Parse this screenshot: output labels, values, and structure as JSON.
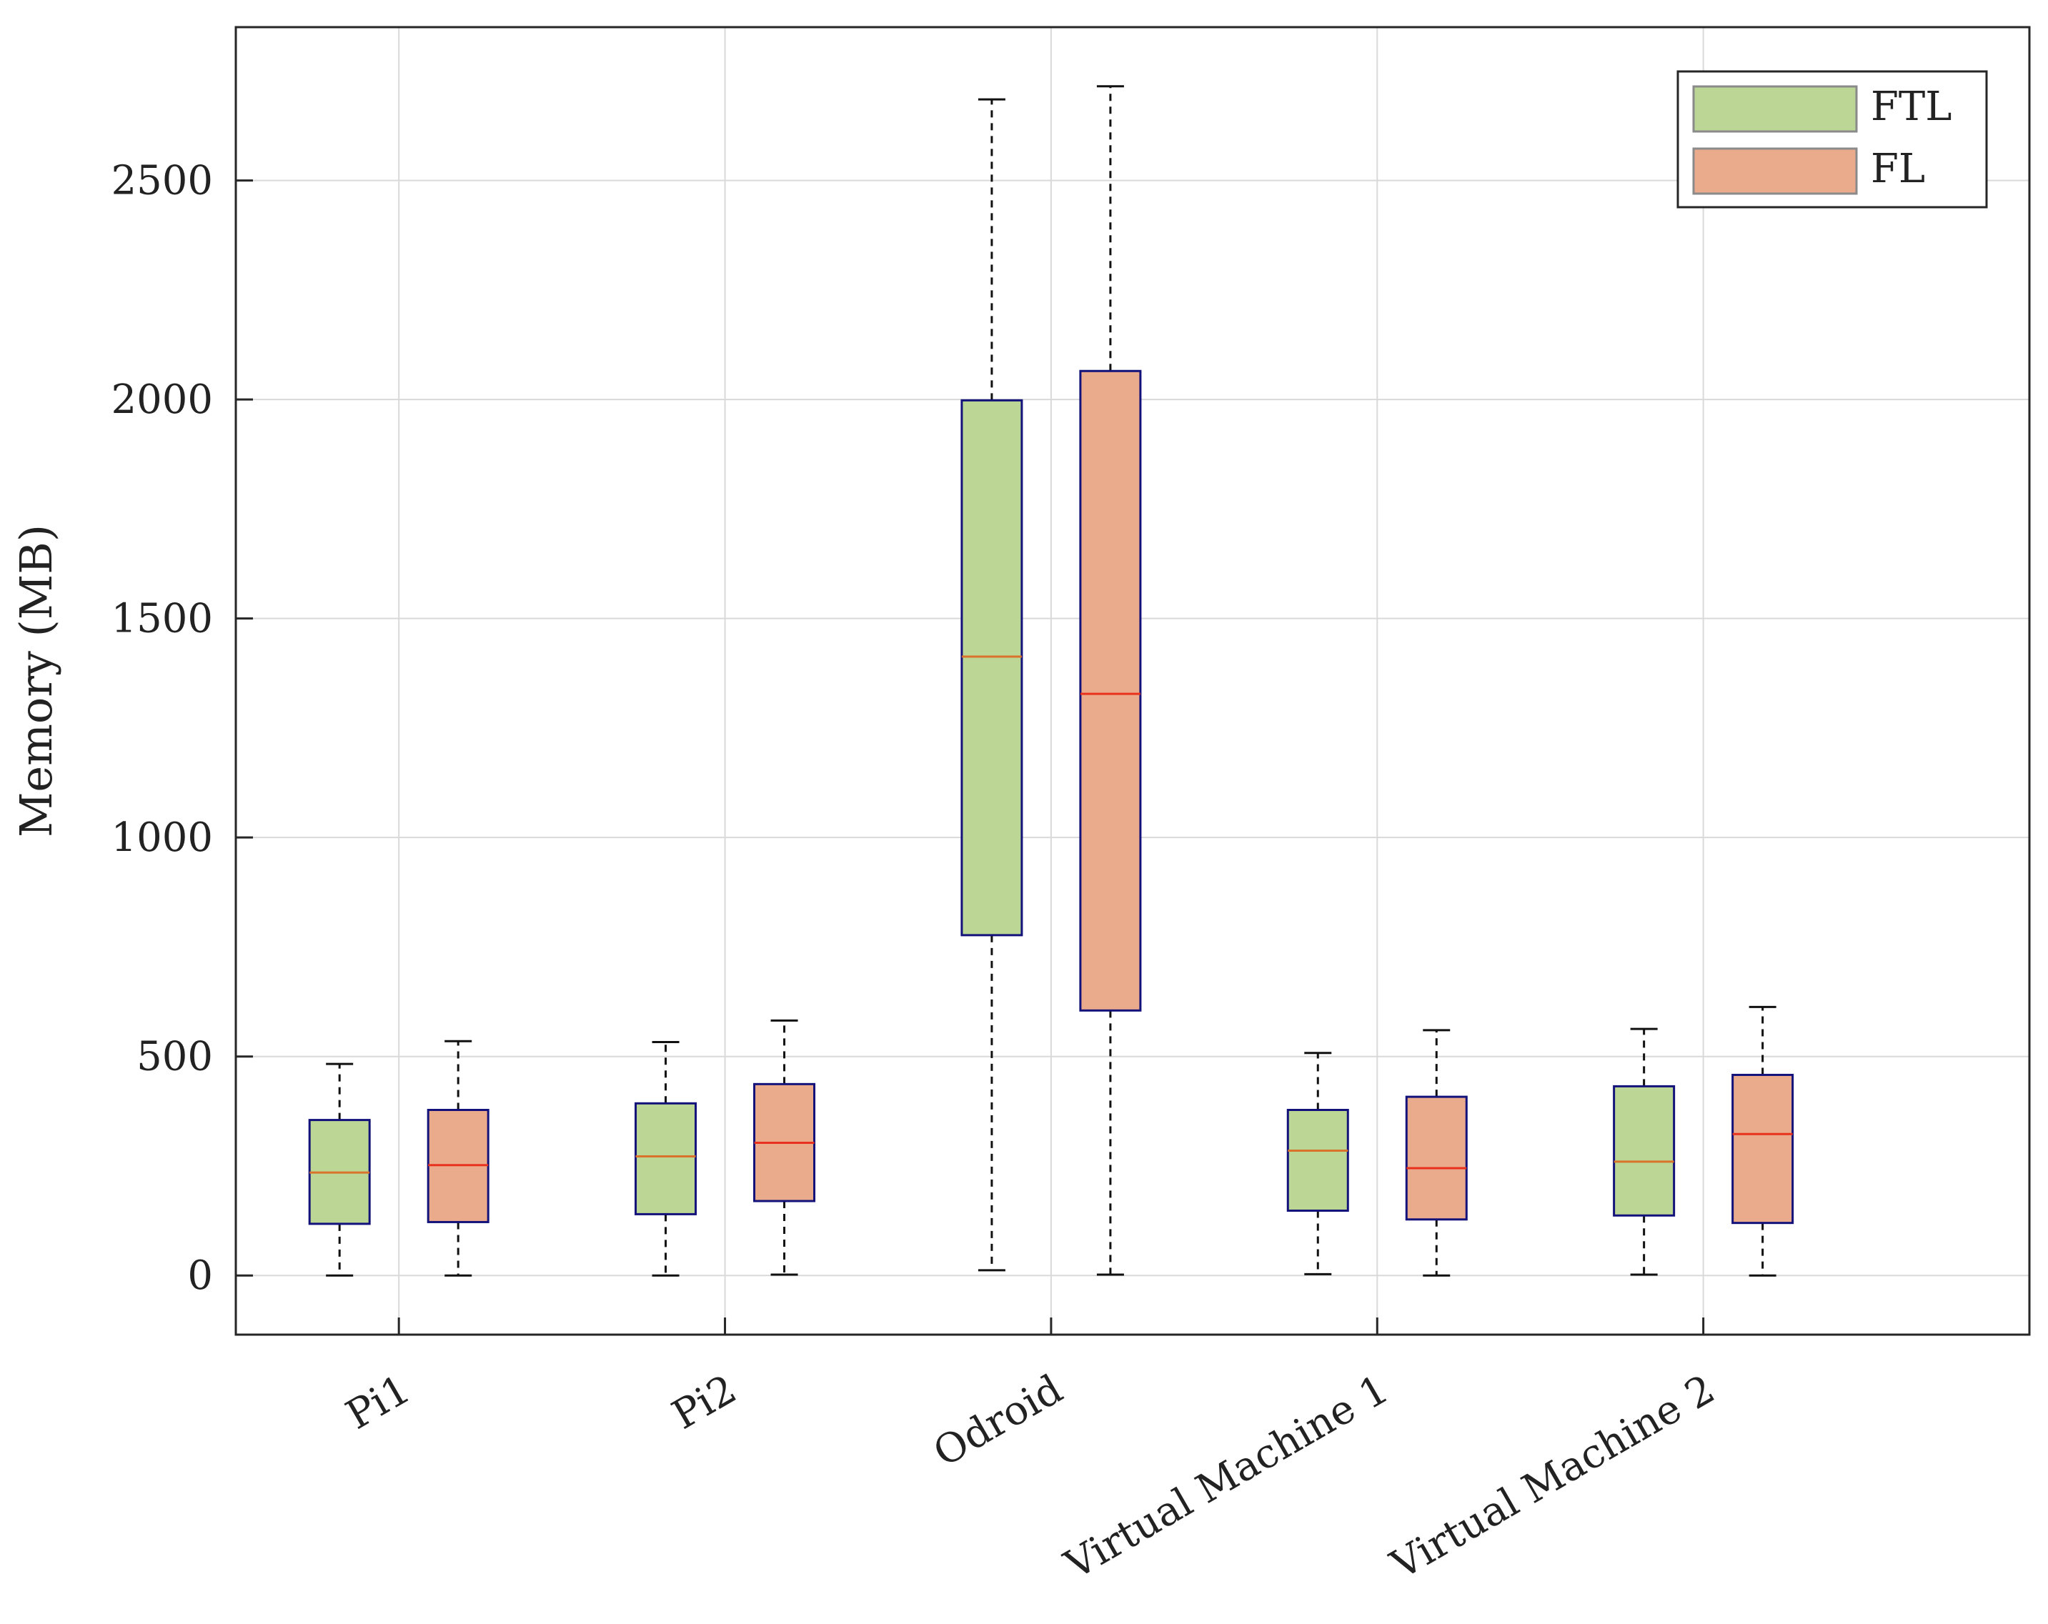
{
  "chart_data": {
    "type": "boxplot",
    "title": "",
    "xlabel": "",
    "ylabel": "Memory (MB)",
    "ylim": [
      -135,
      2850
    ],
    "yticks": [
      0,
      500,
      1000,
      1500,
      2000,
      2500
    ],
    "ytick_labels": [
      "0",
      "500",
      "1000",
      "1500",
      "2000",
      "2500"
    ],
    "grid": true,
    "legend_position": "top-right",
    "categories": [
      "Pi1",
      "Pi2",
      "Odroid",
      "Virtual Machine 1",
      "Virtual Machine 2"
    ],
    "series": [
      {
        "name": "FTL",
        "color": "#bcd795",
        "median_color": "#d9722a",
        "boxes": [
          {
            "min": 0,
            "q1": 118,
            "median": 235,
            "q3": 355,
            "max": 483
          },
          {
            "min": 0,
            "q1": 140,
            "median": 272,
            "q3": 393,
            "max": 533
          },
          {
            "min": 12,
            "q1": 777,
            "median": 1413,
            "q3": 1998,
            "max": 2685
          },
          {
            "min": 3,
            "q1": 148,
            "median": 285,
            "q3": 378,
            "max": 508
          },
          {
            "min": 2,
            "q1": 137,
            "median": 260,
            "q3": 432,
            "max": 563
          }
        ]
      },
      {
        "name": "FL",
        "color": "#eaaa8c",
        "median_color": "#e8321e",
        "boxes": [
          {
            "min": 0,
            "q1": 122,
            "median": 252,
            "q3": 378,
            "max": 535
          },
          {
            "min": 2,
            "q1": 170,
            "median": 303,
            "q3": 437,
            "max": 582
          },
          {
            "min": 2,
            "q1": 605,
            "median": 1328,
            "q3": 2065,
            "max": 2715
          },
          {
            "min": 0,
            "q1": 128,
            "median": 245,
            "q3": 408,
            "max": 560
          },
          {
            "min": 0,
            "q1": 120,
            "median": 323,
            "q3": 458,
            "max": 613
          }
        ]
      }
    ]
  }
}
